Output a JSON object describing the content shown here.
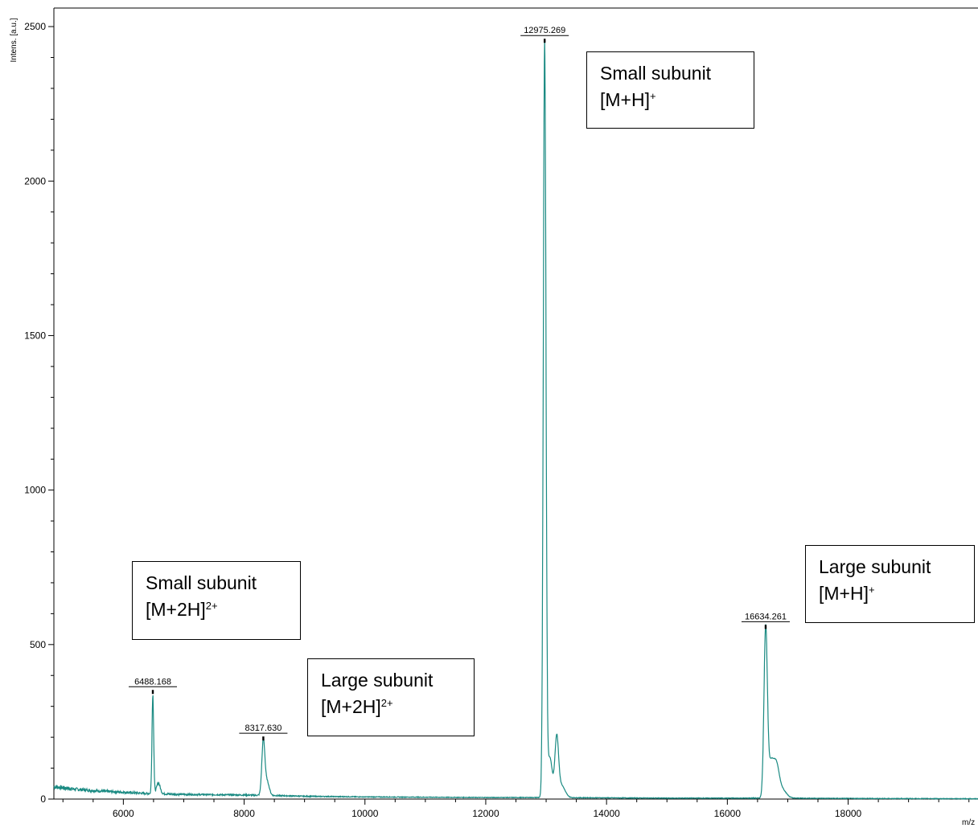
{
  "chart_data": {
    "type": "line",
    "xlabel": "m/z",
    "ylabel": "Intens. [a.u.]",
    "xlim": [
      4850,
      20150
    ],
    "ylim": [
      0,
      2560
    ],
    "x_ticks": [
      6000,
      8000,
      10000,
      12000,
      14000,
      16000,
      18000
    ],
    "y_ticks": [
      0,
      500,
      1000,
      1500,
      2000,
      2500
    ],
    "x_minor_step": 500,
    "y_minor_step": 100,
    "grid": false,
    "line_color": "#1a8a82",
    "baseline": [
      {
        "x": 4850,
        "y": 40
      },
      {
        "x": 5200,
        "y": 32
      },
      {
        "x": 5600,
        "y": 26
      },
      {
        "x": 6000,
        "y": 22
      },
      {
        "x": 6400,
        "y": 18
      },
      {
        "x": 7000,
        "y": 15
      },
      {
        "x": 7600,
        "y": 14
      },
      {
        "x": 8000,
        "y": 13
      },
      {
        "x": 8600,
        "y": 11
      },
      {
        "x": 9000,
        "y": 9
      },
      {
        "x": 10000,
        "y": 7
      },
      {
        "x": 11000,
        "y": 6
      },
      {
        "x": 12000,
        "y": 5
      },
      {
        "x": 13000,
        "y": 5
      },
      {
        "x": 14000,
        "y": 4
      },
      {
        "x": 15000,
        "y": 3
      },
      {
        "x": 16000,
        "y": 3
      },
      {
        "x": 17000,
        "y": 3
      },
      {
        "x": 18000,
        "y": 2
      },
      {
        "x": 20150,
        "y": 1
      }
    ],
    "peaks": [
      {
        "mz": 6488.168,
        "height": 320,
        "width": 14,
        "label": "6488.168"
      },
      {
        "mz": 6580,
        "height": 35,
        "width": 30
      },
      {
        "mz": 8317.63,
        "height": 175,
        "width": 25,
        "label": "8317.630"
      },
      {
        "mz": 8380,
        "height": 45,
        "width": 35
      },
      {
        "mz": 12975.269,
        "height": 2440,
        "width": 22,
        "label": "12975.269"
      },
      {
        "mz": 13060,
        "height": 130,
        "width": 40
      },
      {
        "mz": 13175,
        "height": 185,
        "width": 30
      },
      {
        "mz": 13250,
        "height": 40,
        "width": 60
      },
      {
        "mz": 16634.261,
        "height": 545,
        "width": 28,
        "label": "16634.261"
      },
      {
        "mz": 16720,
        "height": 110,
        "width": 45
      },
      {
        "mz": 16810,
        "height": 95,
        "width": 45
      },
      {
        "mz": 16900,
        "height": 30,
        "width": 70
      }
    ]
  },
  "annotations": [
    {
      "line1": "Small subunit",
      "line2_base": "[M+H]",
      "line2_sup": "+"
    },
    {
      "line1": "Small subunit",
      "line2_base": "[M+2H]",
      "line2_sup": "2+"
    },
    {
      "line1": "Large subunit",
      "line2_base": "[M+2H]",
      "line2_sup": "2+"
    },
    {
      "line1": "Large subunit",
      "line2_base": "[M+H]",
      "line2_sup": "+"
    }
  ]
}
